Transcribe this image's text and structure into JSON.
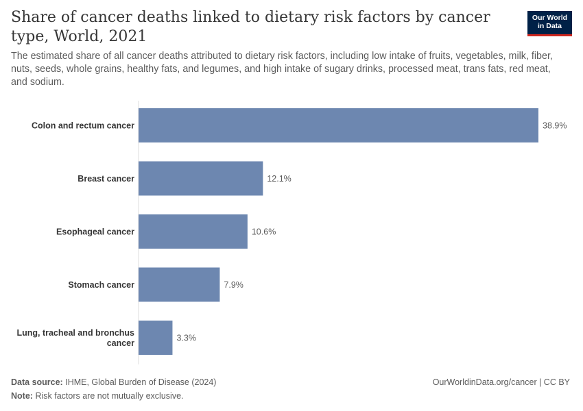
{
  "title": "Share of cancer deaths linked to dietary risk factors by cancer type, World, 2021",
  "subtitle": "The estimated share of all cancer deaths attributed to dietary risk factors, including low intake of fruits, vegetables, milk, fiber, nuts, seeds, whole grains, healthy fats, and legumes, and high intake of sugary drinks, processed meat, trans fats, red meat, and sodium.",
  "logo": {
    "line1": "Our World",
    "line2": "in Data"
  },
  "footer": {
    "source_label": "Data source:",
    "source_text": "IHME, Global Burden of Disease (2024)",
    "note_label": "Note:",
    "note_text": "Risk factors are not mutually exclusive.",
    "url_license": "OurWorldinData.org/cancer | CC BY"
  },
  "colors": {
    "bar": "#6d87b0",
    "axis": "#dddddd",
    "label": "#363636",
    "value": "#5b5b5b"
  },
  "chart_data": {
    "type": "bar",
    "orientation": "horizontal",
    "categories": [
      [
        "Colon and rectum cancer"
      ],
      [
        "Breast cancer"
      ],
      [
        "Esophageal cancer"
      ],
      [
        "Stomach cancer"
      ],
      [
        "Lung, tracheal and bronchus",
        "cancer"
      ]
    ],
    "values": [
      38.9,
      12.1,
      10.6,
      7.9,
      3.3
    ],
    "value_labels": [
      "38.9%",
      "12.1%",
      "10.6%",
      "7.9%",
      "3.3%"
    ],
    "unit": "%",
    "xlim": [
      0,
      38.9
    ]
  }
}
